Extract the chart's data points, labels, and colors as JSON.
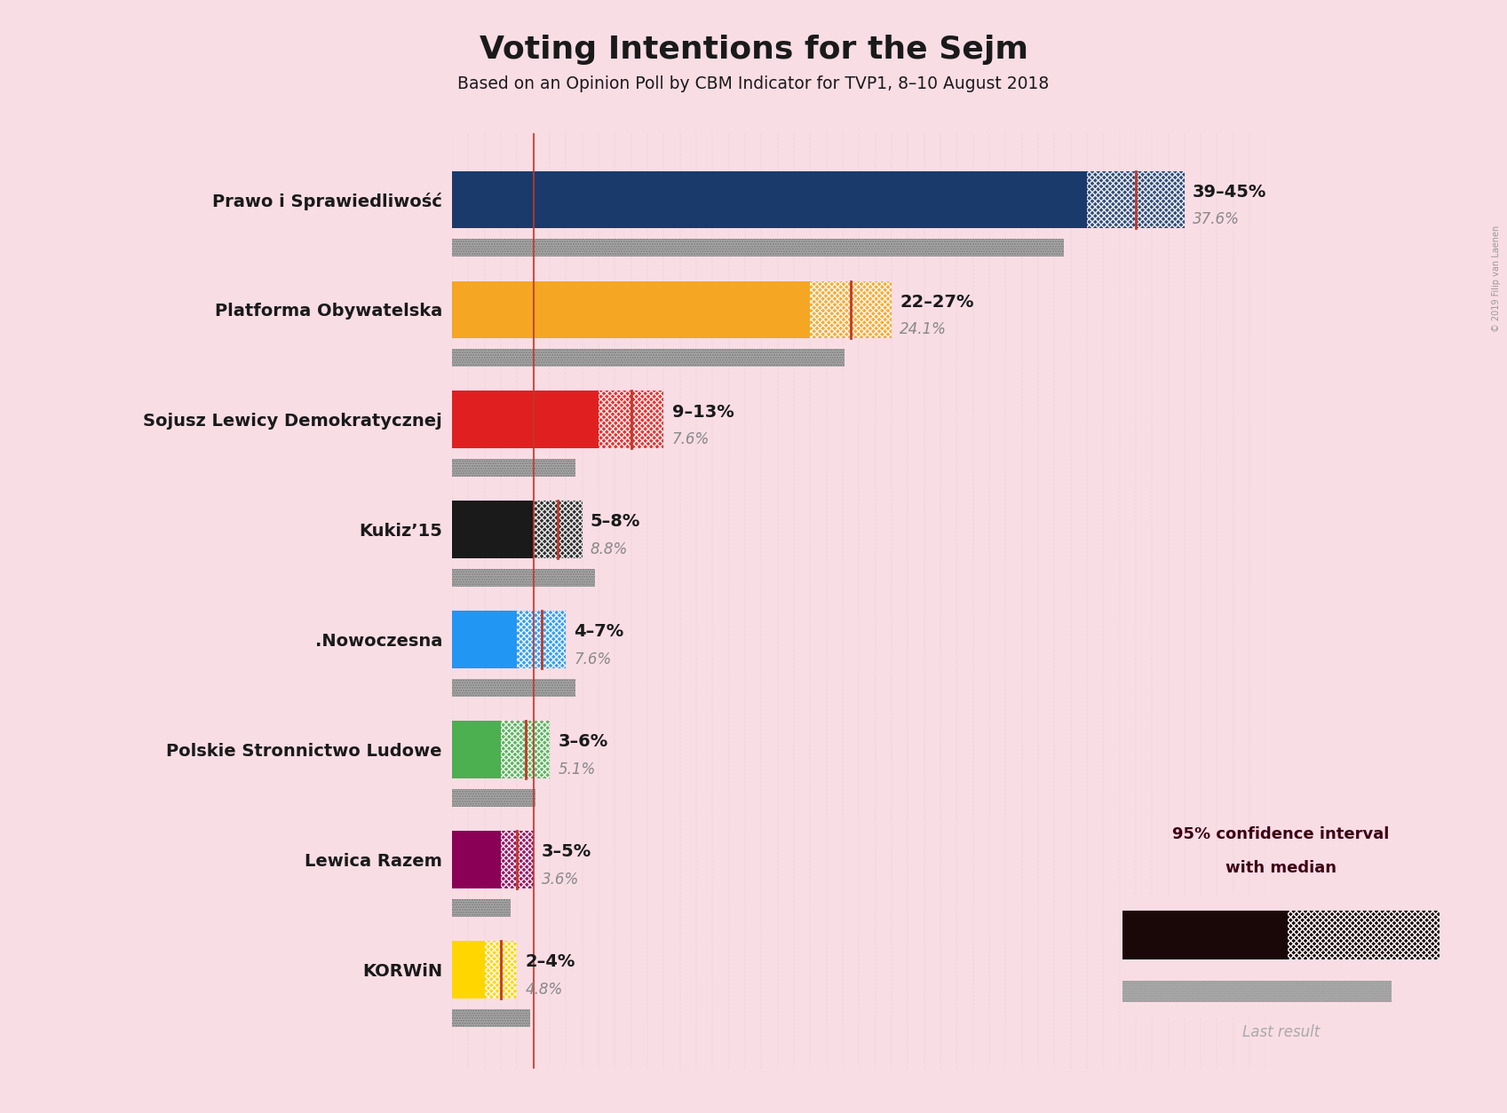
{
  "title": "Voting Intentions for the Sejm",
  "subtitle": "Based on an Opinion Poll by CBM Indicator for TVP1, 8–10 August 2018",
  "copyright": "© 2019 Filip van Laenen",
  "background_color": "#f9dde5",
  "parties": [
    {
      "name": "Prawo i Sprawiedliwość",
      "color": "#1a3a6b",
      "low": 39,
      "high": 45,
      "median": 42,
      "last_result": 37.6,
      "label": "39–45%",
      "last_label": "37.6%"
    },
    {
      "name": "Platforma Obywatelska",
      "color": "#f5a623",
      "low": 22,
      "high": 27,
      "median": 24.5,
      "last_result": 24.1,
      "label": "22–27%",
      "last_label": "24.1%"
    },
    {
      "name": "Sojusz Lewicy Demokratycznej",
      "color": "#e02020",
      "low": 9,
      "high": 13,
      "median": 11,
      "last_result": 7.6,
      "label": "9–13%",
      "last_label": "7.6%"
    },
    {
      "name": "Kukiz’15",
      "color": "#1a1a1a",
      "low": 5,
      "high": 8,
      "median": 6.5,
      "last_result": 8.8,
      "label": "5–8%",
      "last_label": "8.8%"
    },
    {
      "name": ".Nowoczesna",
      "color": "#2196f3",
      "low": 4,
      "high": 7,
      "median": 5.5,
      "last_result": 7.6,
      "label": "4–7%",
      "last_label": "7.6%"
    },
    {
      "name": "Polskie Stronnictwo Ludowe",
      "color": "#4caf50",
      "low": 3,
      "high": 6,
      "median": 4.5,
      "last_result": 5.1,
      "label": "3–6%",
      "last_label": "5.1%"
    },
    {
      "name": "Lewica Razem",
      "color": "#8b0057",
      "low": 3,
      "high": 5,
      "median": 4,
      "last_result": 3.6,
      "label": "3–5%",
      "last_label": "3.6%"
    },
    {
      "name": "KORWiN",
      "color": "#ffd600",
      "low": 2,
      "high": 4,
      "median": 3,
      "last_result": 4.8,
      "label": "2–4%",
      "last_label": "4.8%"
    }
  ],
  "median_line_color": "#c0392b",
  "last_result_color": "#aaaaaa",
  "xlim": [
    0,
    50
  ],
  "threshold": 5,
  "label_color": "#1a1a1a",
  "last_label_color": "#888888",
  "legend_text_color": "#3d0015",
  "legend_box_color": "#1a0808",
  "legend_last_color": "#aaaaaa"
}
